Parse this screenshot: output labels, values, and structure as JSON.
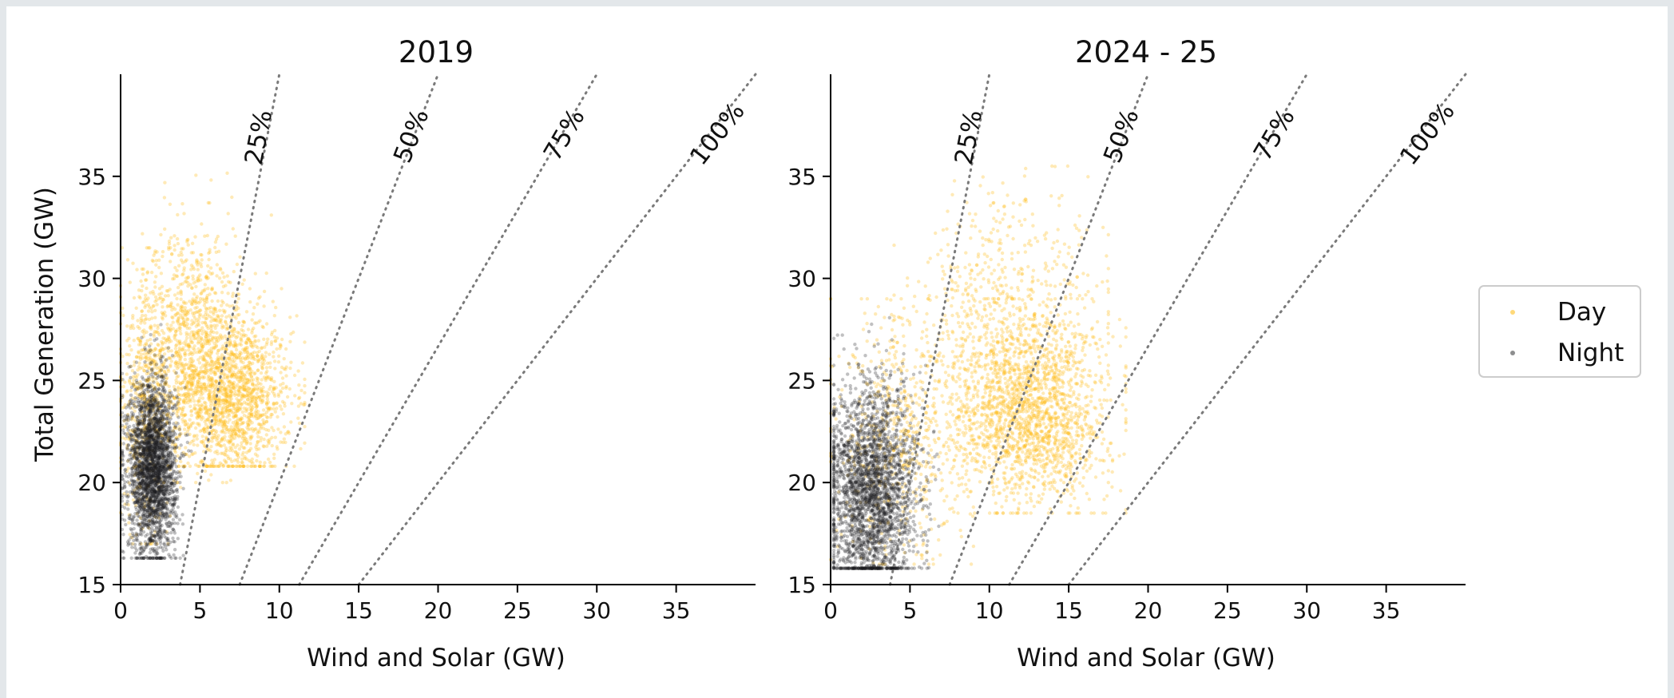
{
  "chart_data": [
    {
      "type": "scatter",
      "title": "2019",
      "xlabel": "Wind and Solar (GW)",
      "ylabel": "Total Generation (GW)",
      "xlim": [
        0,
        40
      ],
      "ylim": [
        15,
        40
      ],
      "xticks": [
        0,
        5,
        10,
        15,
        20,
        25,
        30,
        35
      ],
      "yticks": [
        15,
        20,
        25,
        30,
        35
      ],
      "grid": false,
      "reference_lines": [
        {
          "label": "25%",
          "share": 0.25
        },
        {
          "label": "50%",
          "share": 0.5
        },
        {
          "label": "75%",
          "share": 0.75
        },
        {
          "label": "100%",
          "share": 1.0
        }
      ],
      "series": [
        {
          "name": "Day",
          "color": "#ffbf1f",
          "clusters": [
            {
              "x_center": 7.0,
              "x_spread": 1.9,
              "x_min": 1.0,
              "x_max": 11.6,
              "y_center": 24.2,
              "y_spread": 2.0,
              "y_min": 20.8,
              "y_max": 29.5,
              "count": 1500
            },
            {
              "x_center": 4.6,
              "x_spread": 1.6,
              "x_min": 0.0,
              "x_max": 9.5,
              "y_center": 27.0,
              "y_spread": 2.8,
              "y_min": 20.0,
              "y_max": 36.2,
              "count": 900
            },
            {
              "x_center": 1.5,
              "x_spread": 0.9,
              "x_min": 0.0,
              "x_max": 4.5,
              "y_center": 24.0,
              "y_spread": 3.2,
              "y_min": 17.0,
              "y_max": 31.5,
              "count": 500
            }
          ]
        },
        {
          "name": "Night",
          "color": "#1c1e20",
          "clusters": [
            {
              "x_center": 2.0,
              "x_spread": 0.75,
              "x_min": 0.1,
              "x_max": 4.5,
              "y_center": 20.8,
              "y_spread": 2.1,
              "y_min": 16.3,
              "y_max": 30.0,
              "count": 2600
            }
          ]
        }
      ]
    },
    {
      "type": "scatter",
      "title": "2024 - 25",
      "xlabel": "Wind and Solar (GW)",
      "ylabel": "",
      "xlim": [
        0,
        40
      ],
      "ylim": [
        15,
        40
      ],
      "xticks": [
        0,
        5,
        10,
        15,
        20,
        25,
        30,
        35
      ],
      "yticks": [
        15,
        20,
        25,
        30,
        35
      ],
      "grid": false,
      "reference_lines": [
        {
          "label": "25%",
          "share": 0.25
        },
        {
          "label": "50%",
          "share": 0.5
        },
        {
          "label": "75%",
          "share": 0.75
        },
        {
          "label": "100%",
          "share": 1.0
        }
      ],
      "series": [
        {
          "name": "Day",
          "color": "#ffbf1f",
          "clusters": [
            {
              "x_center": 12.6,
              "x_spread": 2.4,
              "x_min": 6.0,
              "x_max": 18.6,
              "y_center": 23.3,
              "y_spread": 2.2,
              "y_min": 18.5,
              "y_max": 29.0,
              "count": 1700
            },
            {
              "x_center": 11.5,
              "x_spread": 3.0,
              "x_min": 4.0,
              "x_max": 17.5,
              "y_center": 28.0,
              "y_spread": 3.2,
              "y_min": 20.0,
              "y_max": 35.5,
              "count": 700
            },
            {
              "x_center": 4.5,
              "x_spread": 2.2,
              "x_min": 0.0,
              "x_max": 9.0,
              "y_center": 22.0,
              "y_spread": 3.0,
              "y_min": 16.0,
              "y_max": 29.0,
              "count": 600
            }
          ]
        },
        {
          "name": "Night",
          "color": "#1c1e20",
          "clusters": [
            {
              "x_center": 2.6,
              "x_spread": 1.4,
              "x_min": 0.2,
              "x_max": 7.6,
              "y_center": 19.6,
              "y_spread": 2.6,
              "y_min": 15.8,
              "y_max": 29.0,
              "count": 2600
            }
          ]
        }
      ]
    }
  ],
  "legend": {
    "placement": "right",
    "items": [
      {
        "label": "Day",
        "color": "#ffbf1f"
      },
      {
        "label": "Night",
        "color": "#1c1e20"
      }
    ]
  }
}
